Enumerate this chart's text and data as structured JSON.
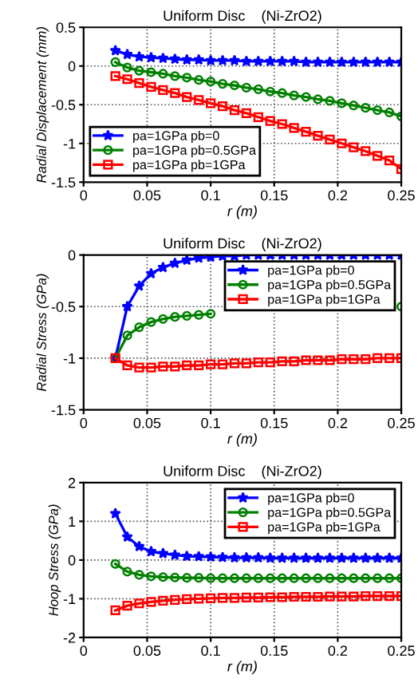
{
  "chart_data": [
    {
      "type": "line",
      "title": "Uniform Disc    (Ni-ZrO2)",
      "xlabel": "r (m)",
      "ylabel": "Radial Displacement (mm)",
      "xlim": [
        0,
        0.25
      ],
      "xticks": [
        0,
        0.05,
        0.1,
        0.15,
        0.2,
        0.25
      ],
      "ylim": [
        -1.5,
        0.5
      ],
      "yticks": [
        -1.5,
        -1,
        -0.5,
        0,
        0.5
      ],
      "grid": true,
      "legend": "bottom left",
      "line_style": "solid",
      "x": [
        0.025,
        0.034375,
        0.04375,
        0.053125,
        0.0625,
        0.071875,
        0.08125,
        0.090625,
        0.1,
        0.109375,
        0.11875,
        0.128125,
        0.1375,
        0.146875,
        0.15625,
        0.165625,
        0.175,
        0.184375,
        0.19375,
        0.203125,
        0.2125,
        0.221875,
        0.23125,
        0.240625,
        0.25
      ],
      "series": [
        {
          "name": "pa=1GPa pb=0",
          "color": "#0000ff",
          "marker": "star",
          "values": [
            0.2,
            0.15,
            0.12,
            0.11,
            0.1,
            0.09,
            0.08,
            0.08,
            0.07,
            0.07,
            0.07,
            0.06,
            0.06,
            0.06,
            0.06,
            0.06,
            0.05,
            0.05,
            0.05,
            0.05,
            0.05,
            0.05,
            0.05,
            0.05,
            0.05
          ]
        },
        {
          "name": "pa=1GPa pb=0.5GPa",
          "color": "#008000",
          "marker": "circle",
          "values": [
            0.05,
            -0.02,
            -0.06,
            -0.08,
            -0.1,
            -0.13,
            -0.15,
            -0.18,
            -0.2,
            -0.23,
            -0.25,
            -0.28,
            -0.3,
            -0.33,
            -0.35,
            -0.38,
            -0.4,
            -0.43,
            -0.45,
            -0.48,
            -0.51,
            -0.54,
            -0.57,
            -0.6,
            -0.65
          ]
        },
        {
          "name": "pa=1GPa pb=1GPa",
          "color": "#ff0000",
          "marker": "square",
          "values": [
            -0.13,
            -0.17,
            -0.22,
            -0.27,
            -0.31,
            -0.35,
            -0.4,
            -0.44,
            -0.48,
            -0.52,
            -0.57,
            -0.61,
            -0.66,
            -0.71,
            -0.75,
            -0.8,
            -0.85,
            -0.9,
            -0.95,
            -1.0,
            -1.05,
            -1.1,
            -1.16,
            -1.22,
            -1.33
          ]
        }
      ]
    },
    {
      "type": "line",
      "title": "Uniform Disc    (Ni-ZrO2)",
      "xlabel": "r (m)",
      "ylabel": "Radial Stress (GPa)",
      "xlim": [
        0,
        0.25
      ],
      "xticks": [
        0,
        0.05,
        0.1,
        0.15,
        0.2,
        0.25
      ],
      "ylim": [
        -1.5,
        0
      ],
      "yticks": [
        -1.5,
        -1,
        -0.5,
        0
      ],
      "grid": true,
      "legend": "top right",
      "line_style": "solid",
      "x": [
        0.025,
        0.034375,
        0.04375,
        0.053125,
        0.0625,
        0.071875,
        0.08125,
        0.090625,
        0.1,
        0.109375,
        0.11875,
        0.128125,
        0.1375,
        0.146875,
        0.15625,
        0.165625,
        0.175,
        0.184375,
        0.19375,
        0.203125,
        0.2125,
        0.221875,
        0.23125,
        0.240625,
        0.25
      ],
      "series": [
        {
          "name": "pa=1GPa pb=0",
          "color": "#0000ff",
          "marker": "star",
          "values": [
            -1.0,
            -0.5,
            -0.3,
            -0.18,
            -0.12,
            -0.08,
            -0.05,
            -0.03,
            -0.02,
            -0.01,
            -0.01,
            0,
            0,
            0,
            0,
            0,
            0,
            0,
            0,
            0,
            0,
            0,
            0,
            0,
            0
          ]
        },
        {
          "name": "pa=1GPa pb=0.5GPa",
          "color": "#008000",
          "marker": "circle",
          "values": [
            -1.0,
            -0.78,
            -0.7,
            -0.65,
            -0.62,
            -0.6,
            -0.59,
            -0.58,
            -0.57,
            null,
            null,
            null,
            null,
            null,
            null,
            null,
            null,
            null,
            null,
            null,
            null,
            null,
            null,
            null,
            -0.5
          ]
        },
        {
          "name": "pa=1GPa pb=1GPa",
          "color": "#ff0000",
          "marker": "square",
          "values": [
            -1.0,
            -1.07,
            -1.09,
            -1.09,
            -1.08,
            -1.08,
            -1.07,
            -1.07,
            -1.06,
            -1.06,
            -1.05,
            -1.05,
            -1.04,
            -1.04,
            -1.03,
            -1.03,
            -1.02,
            -1.02,
            -1.02,
            -1.01,
            -1.01,
            -1.01,
            -1.0,
            -1.0,
            -1.0
          ]
        }
      ]
    },
    {
      "type": "line",
      "title": "Uniform Disc    (Ni-ZrO2)",
      "xlabel": "r (m)",
      "ylabel": "Hoop Stress (GPa)",
      "xlim": [
        0,
        0.25
      ],
      "xticks": [
        0,
        0.05,
        0.1,
        0.15,
        0.2,
        0.25
      ],
      "ylim": [
        -2,
        2
      ],
      "yticks": [
        -2,
        -1,
        0,
        1,
        2
      ],
      "grid": true,
      "legend": "top right",
      "line_style": "solid",
      "x": [
        0.025,
        0.034375,
        0.04375,
        0.053125,
        0.0625,
        0.071875,
        0.08125,
        0.090625,
        0.1,
        0.109375,
        0.11875,
        0.128125,
        0.1375,
        0.146875,
        0.15625,
        0.165625,
        0.175,
        0.184375,
        0.19375,
        0.203125,
        0.2125,
        0.221875,
        0.23125,
        0.240625,
        0.25
      ],
      "series": [
        {
          "name": "pa=1GPa pb=0",
          "color": "#0000ff",
          "marker": "star",
          "values": [
            1.2,
            0.6,
            0.35,
            0.22,
            0.17,
            0.13,
            0.1,
            0.09,
            0.08,
            0.07,
            0.06,
            0.06,
            0.06,
            0.05,
            0.05,
            0.05,
            0.05,
            0.05,
            0.05,
            0.05,
            0.05,
            0.05,
            0.05,
            0.05,
            0.05
          ]
        },
        {
          "name": "pa=1GPa pb=0.5GPa",
          "color": "#008000",
          "marker": "circle",
          "values": [
            -0.1,
            -0.3,
            -0.38,
            -0.42,
            -0.44,
            -0.45,
            -0.46,
            -0.46,
            -0.47,
            -0.47,
            -0.47,
            -0.47,
            -0.47,
            -0.47,
            -0.47,
            -0.47,
            -0.47,
            -0.47,
            -0.47,
            -0.47,
            -0.47,
            -0.47,
            -0.47,
            -0.47,
            -0.47
          ]
        },
        {
          "name": "pa=1GPa pb=1GPa",
          "color": "#ff0000",
          "marker": "square",
          "values": [
            -1.3,
            -1.18,
            -1.12,
            -1.08,
            -1.05,
            -1.03,
            -1.01,
            -1.0,
            -0.99,
            -0.98,
            -0.98,
            -0.97,
            -0.97,
            -0.96,
            -0.96,
            -0.95,
            -0.95,
            -0.95,
            -0.94,
            -0.94,
            -0.94,
            -0.93,
            -0.93,
            -0.93,
            -0.93
          ]
        }
      ]
    }
  ]
}
